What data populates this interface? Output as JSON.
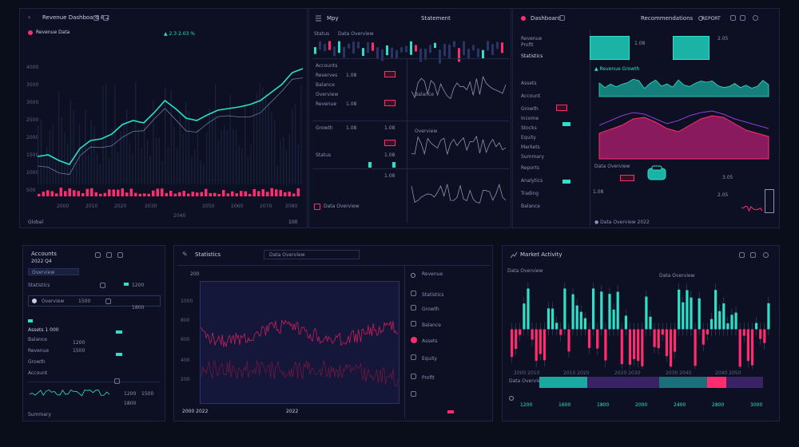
{
  "dashboard": {
    "panel1": {
      "title": "Revenue Dashboard 8.2",
      "subtitle": "Revenue Data",
      "legend": "▲ 2.3 2.03 %",
      "y_ticks": [
        "4000",
        "3500",
        "3000",
        "2500",
        "2000",
        "1500",
        "1000",
        "500"
      ],
      "x_ticks": [
        "2000",
        "2010",
        "2020",
        "2030",
        "2040",
        "2050",
        "2060",
        "2070",
        "2080"
      ],
      "footer_left": "Global",
      "footer_right": "100"
    },
    "panel2": {
      "title": "Mpy",
      "title2": "Statement",
      "header_left": "Status",
      "header_mid": "Data Overview",
      "rows": [
        "Accounts",
        "Reserves",
        "Balance",
        "Overview",
        "Revenue",
        "Growth",
        "Status"
      ],
      "values": [
        "1.08",
        "1.08",
        "1.08",
        "1.08",
        "1.08",
        "1.08"
      ],
      "note": "Data Overview"
    },
    "panel3": {
      "title": "Dashboard",
      "title2": "Recommendations",
      "header_right": "REPORT",
      "side_label": "Statistics",
      "chart_label": "▲ Revenue Growth",
      "items": [
        "Revenue",
        "Profit",
        "Assets",
        "Account",
        "Growth",
        "Income",
        "Stocks",
        "Equity",
        "Markets",
        "Summary",
        "Reports",
        "Analytics",
        "Trading",
        "Balance"
      ],
      "bottom_label": "Data Overview",
      "bottom_nums": [
        "1.08",
        "2.05",
        "3.05"
      ],
      "bottom_footer": "● Data Overview 2022"
    },
    "panel4": {
      "title": "Accounts",
      "subtitle": "2022 Q4",
      "tab": "Overview",
      "rows": [
        "Statistics",
        "Overview",
        "Assets 1 000",
        "Balance",
        "Revenue",
        "Growth",
        "Account"
      ],
      "values": [
        "1200",
        "1500",
        "1800"
      ],
      "footer": "Summary"
    },
    "panel5": {
      "title": "Statistics",
      "search": "Data Overview",
      "y_ticks": [
        "1000",
        "800",
        "600",
        "400",
        "200"
      ],
      "footer_left": "2000 2022",
      "footer_mid": "2022",
      "list": [
        "Revenue",
        "Statistics",
        "Growth",
        "Balance",
        "Assets",
        "Equity",
        "Profit"
      ]
    },
    "panel6": {
      "title": "Market Activity",
      "subtitle": "Data Overview",
      "header_right": "Data Overview",
      "footer": "Data Overview",
      "x_ticks": [
        "2000 2010",
        "2010 2020",
        "2020 2030",
        "2030 2040",
        "2040 2050"
      ],
      "legend_vals": [
        "1200",
        "1600",
        "1800",
        "2000",
        "2400",
        "2800",
        "3000"
      ]
    }
  },
  "colors": {
    "background": "#0a0d1a",
    "panel": "#0c1022",
    "accent_cyan": "#2de0c8",
    "accent_pink": "#ff2d6f",
    "accent_purple": "#8b3fd6"
  }
}
